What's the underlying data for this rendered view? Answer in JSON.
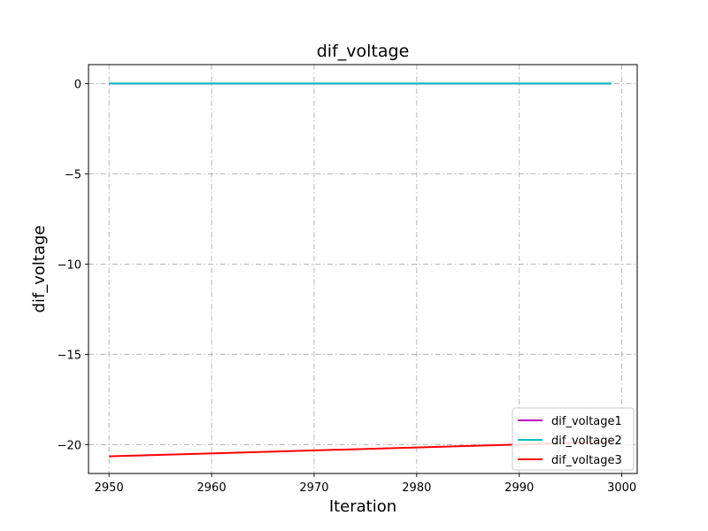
{
  "chart_data": {
    "type": "line",
    "title": "dif_voltage",
    "xlabel": "Iteration",
    "ylabel": "dif_voltage",
    "xlim": [
      2948,
      3001.5
    ],
    "ylim": [
      -21.6,
      1.05
    ],
    "xticks": [
      2950,
      2960,
      2970,
      2980,
      2990,
      3000
    ],
    "yticks": [
      0,
      -5,
      -10,
      -15,
      -20
    ],
    "ytick_labels": [
      "0",
      "−5",
      "−10",
      "−15",
      "−20"
    ],
    "grid": true,
    "grid_style": "dashdot",
    "legend_position": "lower-right",
    "series": [
      {
        "name": "dif_voltage1",
        "color": "#bf00bf",
        "x": [
          2950,
          2999
        ],
        "y": [
          0.0,
          0.0
        ]
      },
      {
        "name": "dif_voltage2",
        "color": "#00bfbf",
        "x": [
          2950,
          2999
        ],
        "y": [
          0.0,
          0.0
        ]
      },
      {
        "name": "dif_voltage3",
        "color": "#ff0000",
        "x": [
          2950,
          2999
        ],
        "y": [
          -20.65,
          -19.85
        ]
      }
    ]
  }
}
